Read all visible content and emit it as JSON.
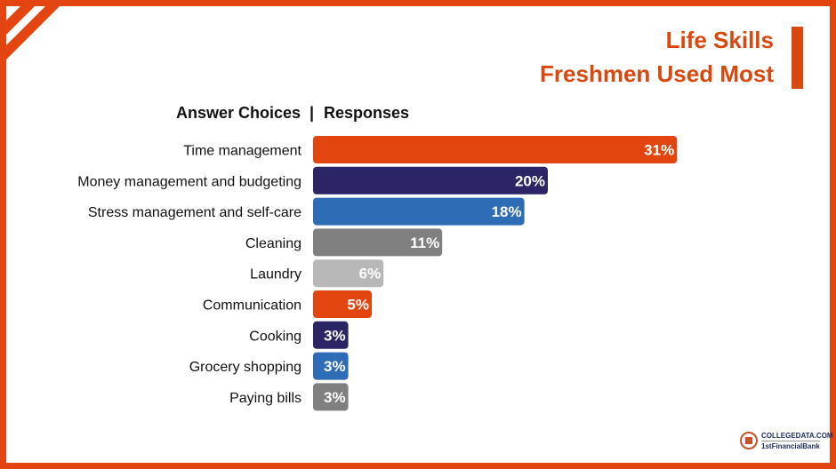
{
  "title": {
    "line1": "Life Skills",
    "line2": "Freshmen Used Most"
  },
  "header": {
    "left": "Answer Choices",
    "separator": "|",
    "right": "Responses"
  },
  "logo": {
    "line1": "COLLEGEDATA.COM",
    "line2": "1stFinancialBank"
  },
  "colors": {
    "accent": "#e2450f",
    "navy": "#2b2566",
    "blue": "#2e6db5",
    "gray": "#808080",
    "lightgray": "#b8b8b8"
  },
  "chart_data": {
    "type": "bar",
    "orientation": "horizontal",
    "categories": [
      "Time management",
      "Money management and budgeting",
      "Stress management and self-care",
      "Cleaning",
      "Laundry",
      "Communication",
      "Cooking",
      "Grocery shopping",
      "Paying bills"
    ],
    "values": [
      31,
      20,
      18,
      11,
      6,
      5,
      3,
      3,
      3
    ],
    "value_labels": [
      "31%",
      "20%",
      "18%",
      "11%",
      "6%",
      "5%",
      "3%",
      "3%",
      "3%"
    ],
    "bar_colors": [
      "#e2450f",
      "#2b2566",
      "#2e6db5",
      "#808080",
      "#b8b8b8",
      "#e2450f",
      "#2b2566",
      "#2e6db5",
      "#808080"
    ],
    "xlabel": "",
    "ylabel": "",
    "grid": false,
    "legend": "none"
  }
}
